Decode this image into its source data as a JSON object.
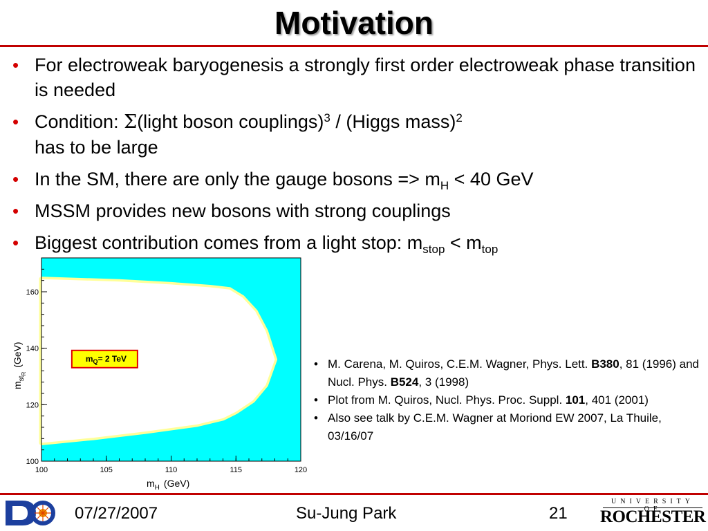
{
  "slide": {
    "title": "Motivation",
    "bullets": {
      "b1": "For electroweak baryogenesis a strongly first order electroweak phase transition is needed",
      "b2_pre": "Condition: ",
      "b2_sigma": "Σ",
      "b2_mid": "(light boson couplings)",
      "b2_sup1": "3",
      "b2_mid2": " / (Higgs mass)",
      "b2_sup2": "2",
      "b2_line2": "has to be large",
      "b3_pre": "In the SM, there are only the gauge bosons => m",
      "b3_sub": "H",
      "b3_post": " < 40 GeV",
      "b4": "MSSM provides new bosons with strong couplings",
      "b5_pre": "Biggest contribution comes from a light stop: m",
      "b5_sub1": "stop",
      "b5_mid": " < m",
      "b5_sub2": "top"
    },
    "refs": {
      "r1_a": "M. Carena, M. Quiros, C.E.M. Wagner, Phys. Lett. ",
      "r1_b": "B380",
      "r1_c": ", 81 (1996) and Nucl. Phys. ",
      "r1_d": "B524",
      "r1_e": ", 3 (1998)",
      "r2_a": "Plot from M. Quiros, Nucl. Phys. Proc. Suppl. ",
      "r2_b": "101",
      "r2_c": ", 401 (2001)",
      "r3": "Also see talk by C.E.M. Wagner at Moriond EW 2007, La Thuile, 03/16/07"
    },
    "footer": {
      "date": "07/27/2007",
      "author": "Su-Jung Park",
      "page": "21",
      "univ_small": "UNIVERSITY OF",
      "univ_big": "ROCHESTER"
    }
  },
  "chart_data": {
    "type": "area",
    "title": "",
    "xlabel_main": "m",
    "xlabel_sub": "H",
    "xlabel_unit": "(GeV)",
    "ylabel_main": "m",
    "ylabel_sub": "st",
    "ylabel_subsub": "R",
    "ylabel_unit": "(GeV)",
    "xlim": [
      100,
      120
    ],
    "ylim": [
      100,
      172
    ],
    "x_ticks": [
      100,
      105,
      110,
      115,
      120
    ],
    "y_ticks": [
      100,
      120,
      140,
      160
    ],
    "annotation_main": "m",
    "annotation_sub": "Q",
    "annotation_rest": "= 2 TeV",
    "annotation_at": [
      104.9,
      136.3
    ],
    "fill_color": "#00ffff",
    "boundary_color": "#ffff99",
    "allowed_region_boundary": [
      [
        100,
        164.5
      ],
      [
        106,
        163.6
      ],
      [
        110,
        162.6
      ],
      [
        113,
        161.6
      ],
      [
        114.5,
        160.8
      ],
      [
        115.5,
        158.0
      ],
      [
        116.5,
        153.0
      ],
      [
        117.3,
        146.0
      ],
      [
        118.0,
        136.0
      ],
      [
        117.3,
        127.0
      ],
      [
        116.3,
        121.5
      ],
      [
        115.0,
        117.5
      ],
      [
        114.0,
        115.2
      ],
      [
        112.0,
        113.0
      ],
      [
        108.0,
        110.5
      ],
      [
        104.0,
        108.3
      ],
      [
        100,
        106.5
      ]
    ]
  }
}
